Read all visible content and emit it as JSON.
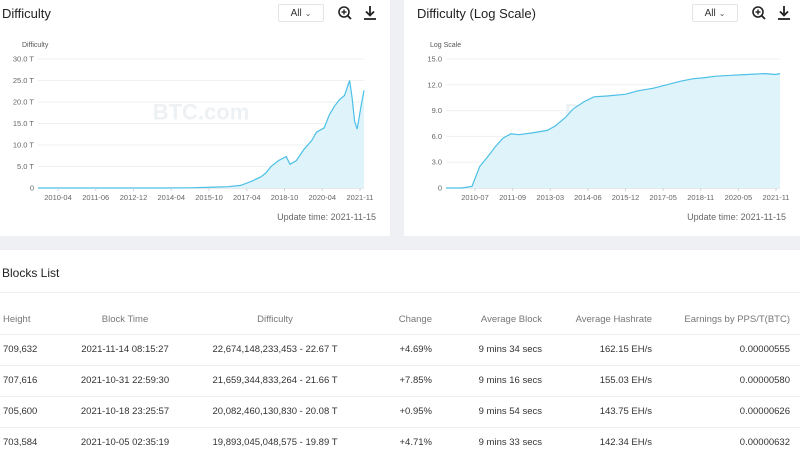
{
  "colors": {
    "accent": "#2b7bc4",
    "positive": "#2f9e5a",
    "chart_line": "#4cc0e6",
    "chart_fill": "#dff3fb"
  },
  "left_panel": {
    "title": "Difficulty",
    "filter_label": "All",
    "update_time": "Update time: 2021-11-15",
    "watermark": "BTC.com"
  },
  "right_panel": {
    "title": "Difficulty (Log Scale)",
    "filter_label": "All",
    "update_time": "Update time: 2021-11-15",
    "watermark": "BTC.com"
  },
  "chart_data": [
    {
      "type": "area",
      "title": "Difficulty",
      "ylabel": "Difficulty",
      "ylim": [
        0,
        30
      ],
      "y_ticks": [
        "0",
        "5.0 T",
        "10.0 T",
        "15.0 T",
        "20.0 T",
        "25.0 T",
        "30.0 T"
      ],
      "x_ticks": [
        "2010-04",
        "2011-06",
        "2012-12",
        "2014-04",
        "2015-10",
        "2017-04",
        "2018-10",
        "2020-04",
        "2021-11"
      ],
      "x": [
        2009.0,
        2010.0,
        2011.0,
        2012.0,
        2013.0,
        2014.0,
        2015.0,
        2016.0,
        2016.5,
        2017.0,
        2017.4,
        2017.8,
        2018.0,
        2018.2,
        2018.5,
        2018.8,
        2018.95,
        2019.2,
        2019.5,
        2019.8,
        2020.0,
        2020.3,
        2020.5,
        2020.7,
        2020.9,
        2021.1,
        2021.3,
        2021.4,
        2021.5,
        2021.6,
        2021.75,
        2021.87
      ],
      "values": [
        0,
        0,
        0,
        0,
        0,
        0.01,
        0.05,
        0.2,
        0.3,
        0.6,
        1.5,
        2.6,
        3.5,
        5.0,
        6.4,
        7.3,
        5.5,
        6.4,
        9.0,
        11.0,
        13.0,
        14.0,
        17.0,
        19.0,
        20.5,
        21.5,
        25.0,
        21.0,
        15.5,
        13.7,
        19.0,
        22.7
      ]
    },
    {
      "type": "area",
      "title": "Difficulty (Log Scale)",
      "ylabel": "Log Scale",
      "ylim": [
        0,
        15
      ],
      "y_ticks": [
        "0",
        "3.0",
        "6.0",
        "9.0",
        "12.0",
        "15.0"
      ],
      "x_ticks": [
        "2010-07",
        "2011-09",
        "2013-03",
        "2014-06",
        "2015-12",
        "2017-05",
        "2018-11",
        "2020-05",
        "2021-11"
      ],
      "x": [
        2009.0,
        2009.6,
        2010.0,
        2010.3,
        2010.6,
        2010.9,
        2011.2,
        2011.5,
        2011.8,
        2012.3,
        2012.9,
        2013.2,
        2013.6,
        2013.9,
        2014.3,
        2014.7,
        2015.2,
        2015.9,
        2016.4,
        2017.0,
        2017.5,
        2018.0,
        2018.5,
        2018.9,
        2019.4,
        2020.0,
        2020.6,
        2021.3,
        2021.7,
        2021.87
      ],
      "values": [
        0,
        0,
        0.2,
        2.5,
        3.6,
        4.8,
        5.8,
        6.3,
        6.2,
        6.4,
        6.7,
        7.2,
        8.2,
        9.2,
        10.0,
        10.6,
        10.7,
        10.9,
        11.3,
        11.6,
        12.0,
        12.4,
        12.7,
        12.8,
        13.0,
        13.1,
        13.2,
        13.3,
        13.2,
        13.3
      ]
    }
  ],
  "blocks": {
    "title": "Blocks List",
    "columns": [
      "Height",
      "Block Time",
      "Difficulty",
      "Change",
      "Average Block",
      "Average Hashrate",
      "Earnings by PPS/T(BTC)"
    ],
    "rows": [
      {
        "height": "709,632",
        "time": "2021-11-14 08:15:27",
        "difficulty": "22,674,148,233,453 - 22.67 T",
        "change": "+4.69%",
        "avg_block": "9 mins 34 secs",
        "hashrate": "162.15 EH/s",
        "earnings": "0.00000555"
      },
      {
        "height": "707,616",
        "time": "2021-10-31 22:59:30",
        "difficulty": "21,659,344,833,264 - 21.66 T",
        "change": "+7.85%",
        "avg_block": "9 mins 16 secs",
        "hashrate": "155.03 EH/s",
        "earnings": "0.00000580"
      },
      {
        "height": "705,600",
        "time": "2021-10-18 23:25:57",
        "difficulty": "20,082,460,130,830 - 20.08 T",
        "change": "+0.95%",
        "avg_block": "9 mins 54 secs",
        "hashrate": "143.75 EH/s",
        "earnings": "0.00000626"
      },
      {
        "height": "703,584",
        "time": "2021-10-05 02:35:19",
        "difficulty": "19,893,045,048,575 - 19.89 T",
        "change": "+4.71%",
        "avg_block": "9 mins 33 secs",
        "hashrate": "142.34 EH/s",
        "earnings": "0.00000632"
      }
    ]
  }
}
